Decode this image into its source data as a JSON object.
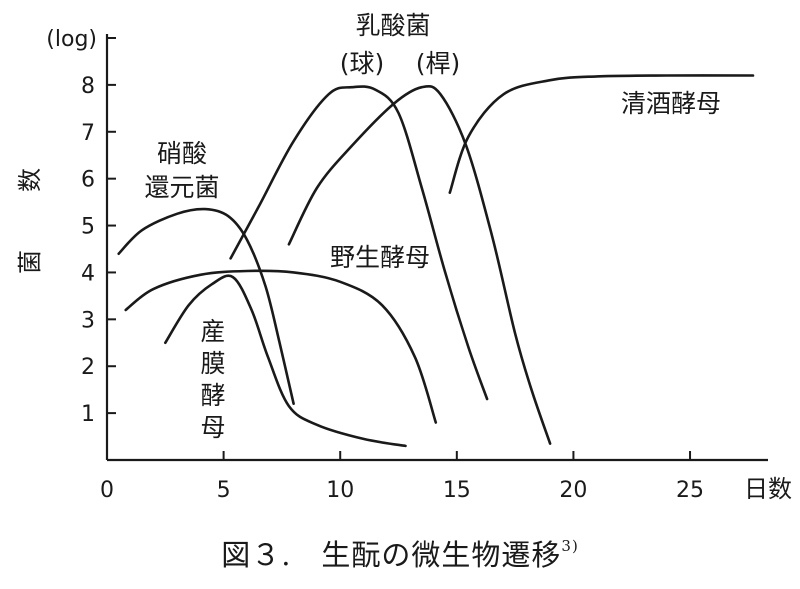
{
  "chart_data": {
    "type": "line",
    "ylabel": "菌 数",
    "yunit": "(log)",
    "xlabel": "日数",
    "xlim": [
      0,
      28
    ],
    "ylim": [
      0,
      9
    ],
    "xticks": [
      0,
      5,
      10,
      15,
      20,
      25
    ],
    "yticks": [
      1,
      2,
      3,
      4,
      5,
      6,
      7,
      8
    ],
    "series": [
      {
        "name": "硝酸還元菌",
        "label_lines": [
          "硝酸",
          "還元菌"
        ],
        "points": [
          [
            0.5,
            4.4
          ],
          [
            1.5,
            4.9
          ],
          [
            3,
            5.25
          ],
          [
            4.2,
            5.35
          ],
          [
            5.2,
            5.2
          ],
          [
            6,
            4.7
          ],
          [
            6.8,
            3.7
          ],
          [
            7.4,
            2.5
          ],
          [
            8,
            1.2
          ]
        ]
      },
      {
        "name": "乳酸菌(球)",
        "label_lines": [
          "乳酸菌",
          "(球)"
        ],
        "points": [
          [
            5.3,
            4.3
          ],
          [
            6.5,
            5.4
          ],
          [
            8,
            6.8
          ],
          [
            9.5,
            7.8
          ],
          [
            10.5,
            7.95
          ],
          [
            11.5,
            7.9
          ],
          [
            12.5,
            7.4
          ],
          [
            13.5,
            5.8
          ],
          [
            14.5,
            4
          ],
          [
            15.5,
            2.4
          ],
          [
            16.3,
            1.3
          ]
        ]
      },
      {
        "name": "乳酸菌(桿)",
        "label_lines": [
          "(桿)"
        ],
        "points": [
          [
            7.8,
            4.6
          ],
          [
            9,
            5.8
          ],
          [
            10.5,
            6.7
          ],
          [
            12.3,
            7.6
          ],
          [
            13.5,
            7.95
          ],
          [
            14.3,
            7.8
          ],
          [
            15.4,
            6.7
          ],
          [
            16.5,
            4.8
          ],
          [
            17.5,
            2.7
          ],
          [
            18.2,
            1.5
          ],
          [
            19,
            0.35
          ]
        ]
      },
      {
        "name": "清酒酵母",
        "label_lines": [
          "清酒酵母"
        ],
        "points": [
          [
            14.7,
            5.7
          ],
          [
            15.5,
            6.9
          ],
          [
            17,
            7.8
          ],
          [
            19,
            8.1
          ],
          [
            21,
            8.18
          ],
          [
            24,
            8.2
          ],
          [
            27.7,
            8.2
          ]
        ]
      },
      {
        "name": "野生酵母",
        "label_lines": [
          "野生酵母"
        ],
        "points": [
          [
            0.8,
            3.2
          ],
          [
            2,
            3.65
          ],
          [
            4,
            3.95
          ],
          [
            6,
            4.03
          ],
          [
            8,
            4.0
          ],
          [
            10,
            3.8
          ],
          [
            11.8,
            3.3
          ],
          [
            13.2,
            2.2
          ],
          [
            14.1,
            0.8
          ]
        ]
      },
      {
        "name": "産膜酵母",
        "label_lines": [
          "産",
          "膜",
          "酵",
          "母"
        ],
        "points": [
          [
            2.5,
            2.5
          ],
          [
            3.5,
            3.3
          ],
          [
            4.5,
            3.75
          ],
          [
            5.4,
            3.9
          ],
          [
            6.2,
            3.2
          ],
          [
            6.9,
            2.2
          ],
          [
            7.8,
            1.15
          ],
          [
            9,
            0.75
          ],
          [
            11,
            0.45
          ],
          [
            12.8,
            0.3
          ]
        ]
      }
    ]
  },
  "caption": {
    "text": "図３.　生酛の微生物遷移",
    "ref": "3)"
  }
}
